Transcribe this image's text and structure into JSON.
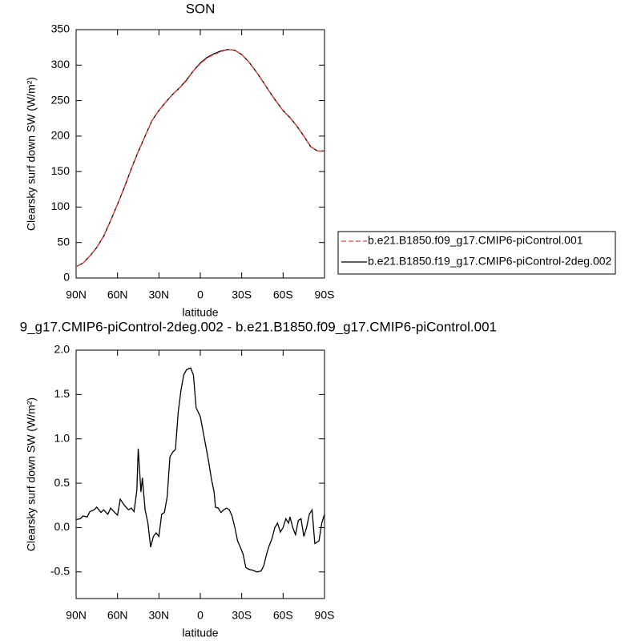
{
  "chart_data": [
    {
      "type": "line",
      "title": "SON",
      "x_label": "latitude",
      "y_label": "Clearsky surf down SW (W/m²)",
      "x": [
        90,
        85,
        80,
        75,
        70,
        65,
        60,
        55,
        50,
        45,
        40,
        35,
        30,
        25,
        20,
        15,
        10,
        5,
        0,
        -5,
        -10,
        -15,
        -20,
        -25,
        -30,
        -35,
        -40,
        -45,
        -50,
        -55,
        -60,
        -65,
        -70,
        -75,
        -80,
        -85,
        -90
      ],
      "series": [
        {
          "name": "b.e21.B1850.f09_g17.CMIP6-piControl.001",
          "color": "#e8413c",
          "style": "dashed",
          "values": [
            16,
            21,
            31,
            43,
            59,
            81,
            104,
            128,
            154,
            178,
            200,
            222,
            236,
            248,
            259,
            268,
            278,
            292,
            302,
            310,
            315,
            319,
            322,
            321,
            315,
            305,
            292,
            278,
            263,
            249,
            236,
            226,
            214,
            200,
            185,
            179,
            179
          ]
        },
        {
          "name": "b.e21.B1850.f19_g17.CMIP6-piControl-2deg.002",
          "color": "#000000",
          "style": "solid",
          "values": [
            16,
            21,
            31,
            43,
            59,
            81,
            104,
            128,
            154,
            178,
            200,
            222,
            236,
            248,
            259,
            268,
            279,
            292,
            303,
            311,
            316,
            320,
            322,
            321,
            315,
            305,
            292,
            278,
            263,
            249,
            236,
            226,
            214,
            200,
            185,
            179,
            179
          ]
        }
      ],
      "xlim": [
        90,
        -90
      ],
      "xticks": [
        {
          "value": 90,
          "label": "90N"
        },
        {
          "value": 60,
          "label": "60N"
        },
        {
          "value": 30,
          "label": "30N"
        },
        0,
        {
          "value": -30,
          "label": "30S"
        },
        {
          "value": -60,
          "label": "60S"
        },
        {
          "value": -90,
          "label": "90S"
        }
      ],
      "ylim": [
        0,
        350
      ],
      "yticks": [
        0,
        50,
        100,
        150,
        200,
        250,
        300,
        350
      ],
      "legend": "right"
    },
    {
      "type": "line",
      "title": "9_g17.CMIP6-piControl-2deg.002 - b.e21.B1850.f09_g17.CMIP6-piControl.001",
      "x_label": "latitude",
      "y_label": "Clearsky surf down SW (W/m²)",
      "x": [
        90,
        87,
        85,
        82,
        80,
        77,
        75,
        72,
        70,
        67,
        65,
        62,
        60,
        58,
        55,
        52,
        50,
        48,
        46,
        45,
        43,
        42,
        40,
        38,
        36,
        34,
        32,
        30,
        28,
        26,
        24,
        22,
        20,
        18,
        16,
        14,
        12,
        10,
        7,
        5,
        3,
        0,
        -3,
        -6,
        -8,
        -10,
        -11,
        -13,
        -15,
        -17,
        -19,
        -21,
        -23,
        -25,
        -27,
        -29,
        -31,
        -33,
        -35,
        -38,
        -41,
        -44,
        -46,
        -48,
        -50,
        -52,
        -54,
        -56,
        -58,
        -60,
        -62,
        -64,
        -65,
        -67,
        -69,
        -71,
        -73,
        -75,
        -77,
        -79,
        -81,
        -83,
        -86,
        -88,
        -90
      ],
      "series": [
        {
          "color": "#000000",
          "style": "solid",
          "values": [
            0.09,
            0.1,
            0.13,
            0.12,
            0.18,
            0.2,
            0.23,
            0.17,
            0.2,
            0.15,
            0.22,
            0.17,
            0.14,
            0.32,
            0.25,
            0.2,
            0.22,
            0.18,
            0.42,
            0.89,
            0.4,
            0.56,
            0.2,
            0.05,
            -0.22,
            -0.1,
            -0.06,
            -0.1,
            0.15,
            0.17,
            0.35,
            0.8,
            0.85,
            0.88,
            1.3,
            1.55,
            1.72,
            1.78,
            1.8,
            1.72,
            1.35,
            1.25,
            1.0,
            0.75,
            0.55,
            0.4,
            0.23,
            0.22,
            0.17,
            0.2,
            0.22,
            0.2,
            0.13,
            0.0,
            -0.15,
            -0.22,
            -0.3,
            -0.45,
            -0.47,
            -0.48,
            -0.5,
            -0.49,
            -0.43,
            -0.3,
            -0.2,
            -0.12,
            0.0,
            0.05,
            -0.05,
            0.0,
            0.1,
            0.05,
            0.12,
            0.0,
            -0.08,
            0.08,
            0.1,
            -0.1,
            0.0,
            0.15,
            0.2,
            -0.18,
            -0.15,
            0.05,
            0.15
          ]
        }
      ],
      "xlim": [
        90,
        -90
      ],
      "xticks": [
        {
          "value": 90,
          "label": "90N"
        },
        {
          "value": 60,
          "label": "60N"
        },
        {
          "value": 30,
          "label": "30N"
        },
        0,
        {
          "value": -30,
          "label": "30S"
        },
        {
          "value": -60,
          "label": "60S"
        },
        {
          "value": -90,
          "label": "90S"
        }
      ],
      "ylim": [
        -0.8,
        2.0
      ],
      "yticks": [
        -0.5,
        {
          "value": 0,
          "label": "0.0"
        },
        0.5,
        {
          "value": 1,
          "label": "1.0"
        },
        1.5,
        {
          "value": 2,
          "label": "2.0"
        }
      ]
    }
  ]
}
